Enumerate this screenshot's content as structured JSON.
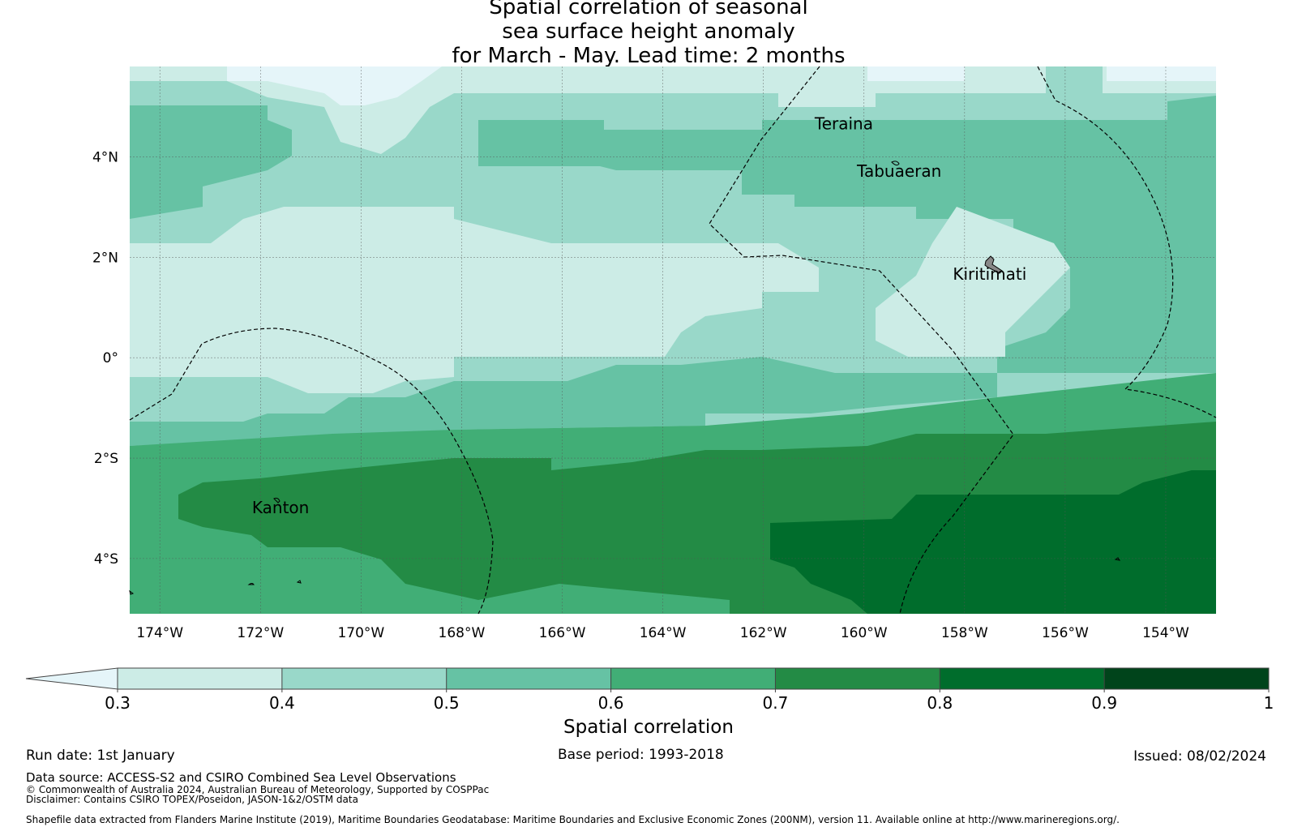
{
  "title": {
    "line1": "Spatial correlation of seasonal",
    "line2": "sea surface height anomaly",
    "line3": "for March - May. Lead time: 2 months"
  },
  "map": {
    "lon_range": [
      -174.6,
      -153.0
    ],
    "lat_range": [
      -5.1,
      5.8
    ],
    "x_ticks": [
      {
        "lon": -174,
        "label": "174°W"
      },
      {
        "lon": -172,
        "label": "172°W"
      },
      {
        "lon": -170,
        "label": "170°W"
      },
      {
        "lon": -168,
        "label": "168°W"
      },
      {
        "lon": -166,
        "label": "166°W"
      },
      {
        "lon": -164,
        "label": "164°W"
      },
      {
        "lon": -162,
        "label": "162°W"
      },
      {
        "lon": -160,
        "label": "160°W"
      },
      {
        "lon": -158,
        "label": "158°W"
      },
      {
        "lon": -156,
        "label": "156°W"
      },
      {
        "lon": -154,
        "label": "154°W"
      }
    ],
    "y_ticks": [
      {
        "lat": 4,
        "label": "4°N"
      },
      {
        "lat": 2,
        "label": "2°N"
      },
      {
        "lat": 0,
        "label": "0°"
      },
      {
        "lat": -2,
        "label": "2°S"
      },
      {
        "lat": -4,
        "label": "4°S"
      }
    ],
    "places": [
      {
        "name": "Teraina",
        "lon": -160.4,
        "lat": 4.55
      },
      {
        "name": "Tabuaeran",
        "lon": -159.3,
        "lat": 3.6
      },
      {
        "name": "Kiritimati",
        "lon": -157.5,
        "lat": 1.55
      },
      {
        "name": "Kanton",
        "lon": -171.6,
        "lat": -3.1
      }
    ]
  },
  "colorbar": {
    "boundaries": [
      0.3,
      0.4,
      0.5,
      0.6,
      0.7,
      0.8,
      0.9,
      1
    ],
    "tick_labels": [
      "0.3",
      "0.4",
      "0.5",
      "0.6",
      "0.7",
      "0.8",
      "0.9",
      "1"
    ],
    "colors": [
      "#ccece6",
      "#99d8c9",
      "#66c2a4",
      "#41ae76",
      "#238b45",
      "#006d2c",
      "#00441b"
    ],
    "under_color": "#e5f5f9",
    "label": "Spatial correlation"
  },
  "footer": {
    "run_date": "Run date: 1st January",
    "base_period": "Base period: 1993-2018",
    "issued": "Issued: 08/02/2024",
    "data_source": "Data source: ACCESS-S2 and CSIRO Combined Sea Level Observations",
    "copyright": "© Commonwealth of Australia 2024, Australian Bureau of Meteorology, Supported by COSPPac",
    "disclaimer": "Disclaimer: Contains CSIRO TOPEX/Poseidon, JASON-1&2/OSTM data",
    "shapefile": "Shapefile data extracted from Flanders Marine Institute (2019), Maritime Boundaries Geodatabase: Maritime Boundaries and Exclusive Economic Zones (200NM), version 11. Available online at http://www.marineregions.org/."
  }
}
